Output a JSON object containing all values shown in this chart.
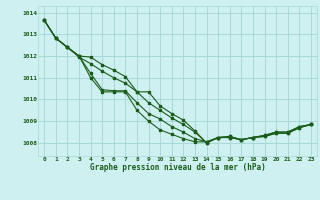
{
  "title": "Graphe pression niveau de la mer (hPa)",
  "bg_color": "#cff0f0",
  "grid_color": "#a8d8d8",
  "line_color": "#1a5c1a",
  "xlim": [
    -0.5,
    23.5
  ],
  "ylim": [
    1007.4,
    1014.3
  ],
  "yticks": [
    1008,
    1009,
    1010,
    1011,
    1012,
    1013,
    1014
  ],
  "xticks": [
    0,
    1,
    2,
    3,
    4,
    5,
    6,
    7,
    8,
    9,
    10,
    11,
    12,
    13,
    14,
    15,
    16,
    17,
    18,
    19,
    20,
    21,
    22,
    23
  ],
  "series": [
    [
      1013.65,
      1012.82,
      1012.4,
      1012.0,
      1011.95,
      1011.6,
      1011.35,
      1011.05,
      1010.35,
      1010.35,
      1009.7,
      1009.35,
      1009.05,
      1008.55,
      1008.0,
      1008.25,
      1008.25,
      1008.15,
      1008.25,
      1008.3,
      1008.45,
      1008.45,
      1008.7,
      1008.85
    ],
    [
      1013.65,
      1012.82,
      1012.4,
      1011.95,
      1011.65,
      1011.3,
      1011.0,
      1010.75,
      1010.35,
      1009.85,
      1009.5,
      1009.15,
      1008.85,
      1008.5,
      1008.0,
      1008.25,
      1008.25,
      1008.15,
      1008.25,
      1008.3,
      1008.45,
      1008.45,
      1008.7,
      1008.85
    ],
    [
      1013.65,
      1012.82,
      1012.4,
      1012.0,
      1011.2,
      1010.45,
      1010.4,
      1010.4,
      1009.85,
      1009.35,
      1009.1,
      1008.75,
      1008.5,
      1008.2,
      1008.05,
      1008.25,
      1008.3,
      1008.15,
      1008.25,
      1008.35,
      1008.5,
      1008.5,
      1008.75,
      1008.85
    ],
    [
      1013.65,
      1012.82,
      1012.4,
      1012.0,
      1011.0,
      1010.35,
      1010.35,
      1010.35,
      1009.5,
      1009.0,
      1008.6,
      1008.4,
      1008.2,
      1008.05,
      1008.05,
      1008.25,
      1008.3,
      1008.15,
      1008.25,
      1008.35,
      1008.5,
      1008.5,
      1008.75,
      1008.85
    ]
  ]
}
